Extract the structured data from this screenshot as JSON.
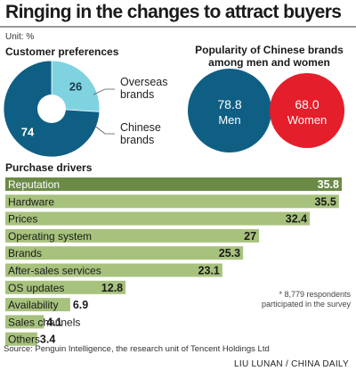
{
  "title": "Ringing in the changes to attract buyers",
  "unit": "Unit: %",
  "colors": {
    "dark_blue": "#0f5f85",
    "light_blue": "#7fd3e0",
    "red": "#e41e2b",
    "bar_green": "#a7c27d",
    "bar_dark": "#6b8a45"
  },
  "chart_data": [
    {
      "type": "pie",
      "title": "Customer preferences",
      "slices": [
        {
          "label_line1": "Overseas",
          "label_line2": "brands",
          "value": 26
        },
        {
          "label_line1": "Chinese",
          "label_line2": "brands",
          "value": 74
        }
      ]
    },
    {
      "type": "bubble",
      "title": "Popularity of Chinese brands among men and women",
      "items": [
        {
          "label": "Men",
          "value": 78.8
        },
        {
          "label": "Women",
          "value": 68.0
        }
      ]
    },
    {
      "type": "bar",
      "orientation": "horizontal",
      "title": "Purchase drivers",
      "categories": [
        "Reputation",
        "Hardware",
        "Prices",
        "Operating system",
        "Brands",
        "After-sales services",
        "OS updates",
        "Availability",
        "Sales channels",
        "Others"
      ],
      "values": [
        35.8,
        35.5,
        32.4,
        27,
        25.3,
        23.1,
        12.8,
        6.9,
        4.1,
        3.4
      ],
      "value_labels": [
        "35.8",
        "35.5",
        "32.4",
        "27",
        "25.3",
        "23.1",
        "12.8",
        "6.9",
        "4.1",
        "3.4"
      ],
      "highlight_index": 0
    }
  ],
  "note": "* 8,779 respondents participated in the survey",
  "source": "Source: Penguin Intelligence, the research unit of Tencent Holdings Ltd",
  "credit": "LIU LUNAN / CHINA DAILY"
}
